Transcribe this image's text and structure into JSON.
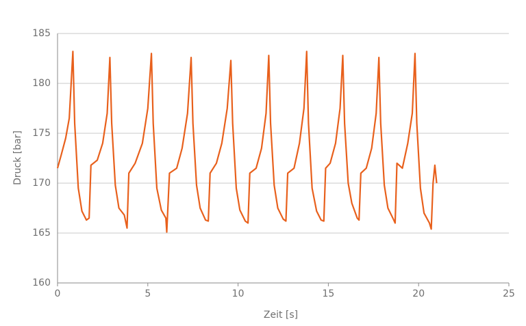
{
  "chart_data": {
    "type": "line",
    "x_label": "Zeit [s]",
    "y_label": "Druck [bar]",
    "xlim": [
      0,
      25
    ],
    "xticks": [
      0,
      5,
      10,
      15,
      20,
      25
    ],
    "ylim": [
      160,
      185
    ],
    "yticks": [
      160,
      165,
      170,
      175,
      180,
      185
    ],
    "grid": true,
    "series": [
      {
        "color": "#e8601c",
        "x": [
          0,
          0.2,
          0.45,
          0.65,
          0.85,
          0.95,
          1.15,
          1.35,
          1.6,
          1.75,
          1.85,
          2.2,
          2.5,
          2.75,
          2.9,
          3.0,
          3.2,
          3.4,
          3.7,
          3.85,
          3.95,
          4.3,
          4.7,
          5.0,
          5.2,
          5.3,
          5.5,
          5.75,
          6.0,
          6.05,
          6.2,
          6.6,
          6.9,
          7.2,
          7.4,
          7.5,
          7.7,
          7.9,
          8.2,
          8.35,
          8.45,
          8.8,
          9.1,
          9.4,
          9.6,
          9.7,
          9.9,
          10.1,
          10.4,
          10.55,
          10.65,
          11.0,
          11.3,
          11.55,
          11.7,
          11.8,
          12.0,
          12.2,
          12.5,
          12.65,
          12.75,
          13.1,
          13.4,
          13.65,
          13.8,
          13.9,
          14.1,
          14.35,
          14.6,
          14.75,
          14.85,
          15.1,
          15.4,
          15.65,
          15.8,
          15.9,
          16.1,
          16.3,
          16.6,
          16.7,
          16.8,
          17.1,
          17.4,
          17.65,
          17.8,
          17.9,
          18.1,
          18.3,
          18.6,
          18.7,
          18.8,
          19.1,
          19.4,
          19.65,
          19.8,
          19.9,
          20.1,
          20.3,
          20.6,
          20.7,
          20.8,
          20.9,
          21.0
        ],
        "values": [
          171.5,
          172.8,
          174.5,
          176.5,
          183.2,
          176,
          169.5,
          167.2,
          166.3,
          166.5,
          171.8,
          172.3,
          174,
          177,
          182.6,
          176,
          169.8,
          167.5,
          166.8,
          165.5,
          171,
          172,
          174,
          177.5,
          183,
          176,
          169.5,
          167.3,
          166.5,
          165.1,
          171,
          171.5,
          173.5,
          177,
          182.6,
          176,
          169.8,
          167.5,
          166.3,
          166.2,
          171,
          172,
          174,
          177.5,
          182.3,
          176,
          169.5,
          167.3,
          166.2,
          166,
          171,
          171.5,
          173.5,
          177,
          182.8,
          176,
          169.8,
          167.5,
          166.4,
          166.2,
          171,
          171.5,
          174,
          177.5,
          183.2,
          176,
          169.5,
          167.2,
          166.3,
          166.2,
          171.5,
          172,
          174,
          177.5,
          182.8,
          176,
          170,
          168,
          166.5,
          166.3,
          171,
          171.5,
          173.5,
          177,
          182.6,
          176,
          169.8,
          167.5,
          166.4,
          166,
          172,
          171.5,
          174,
          177,
          183,
          176,
          169.5,
          167,
          166,
          165.4,
          170,
          171.8,
          170
        ]
      }
    ]
  }
}
